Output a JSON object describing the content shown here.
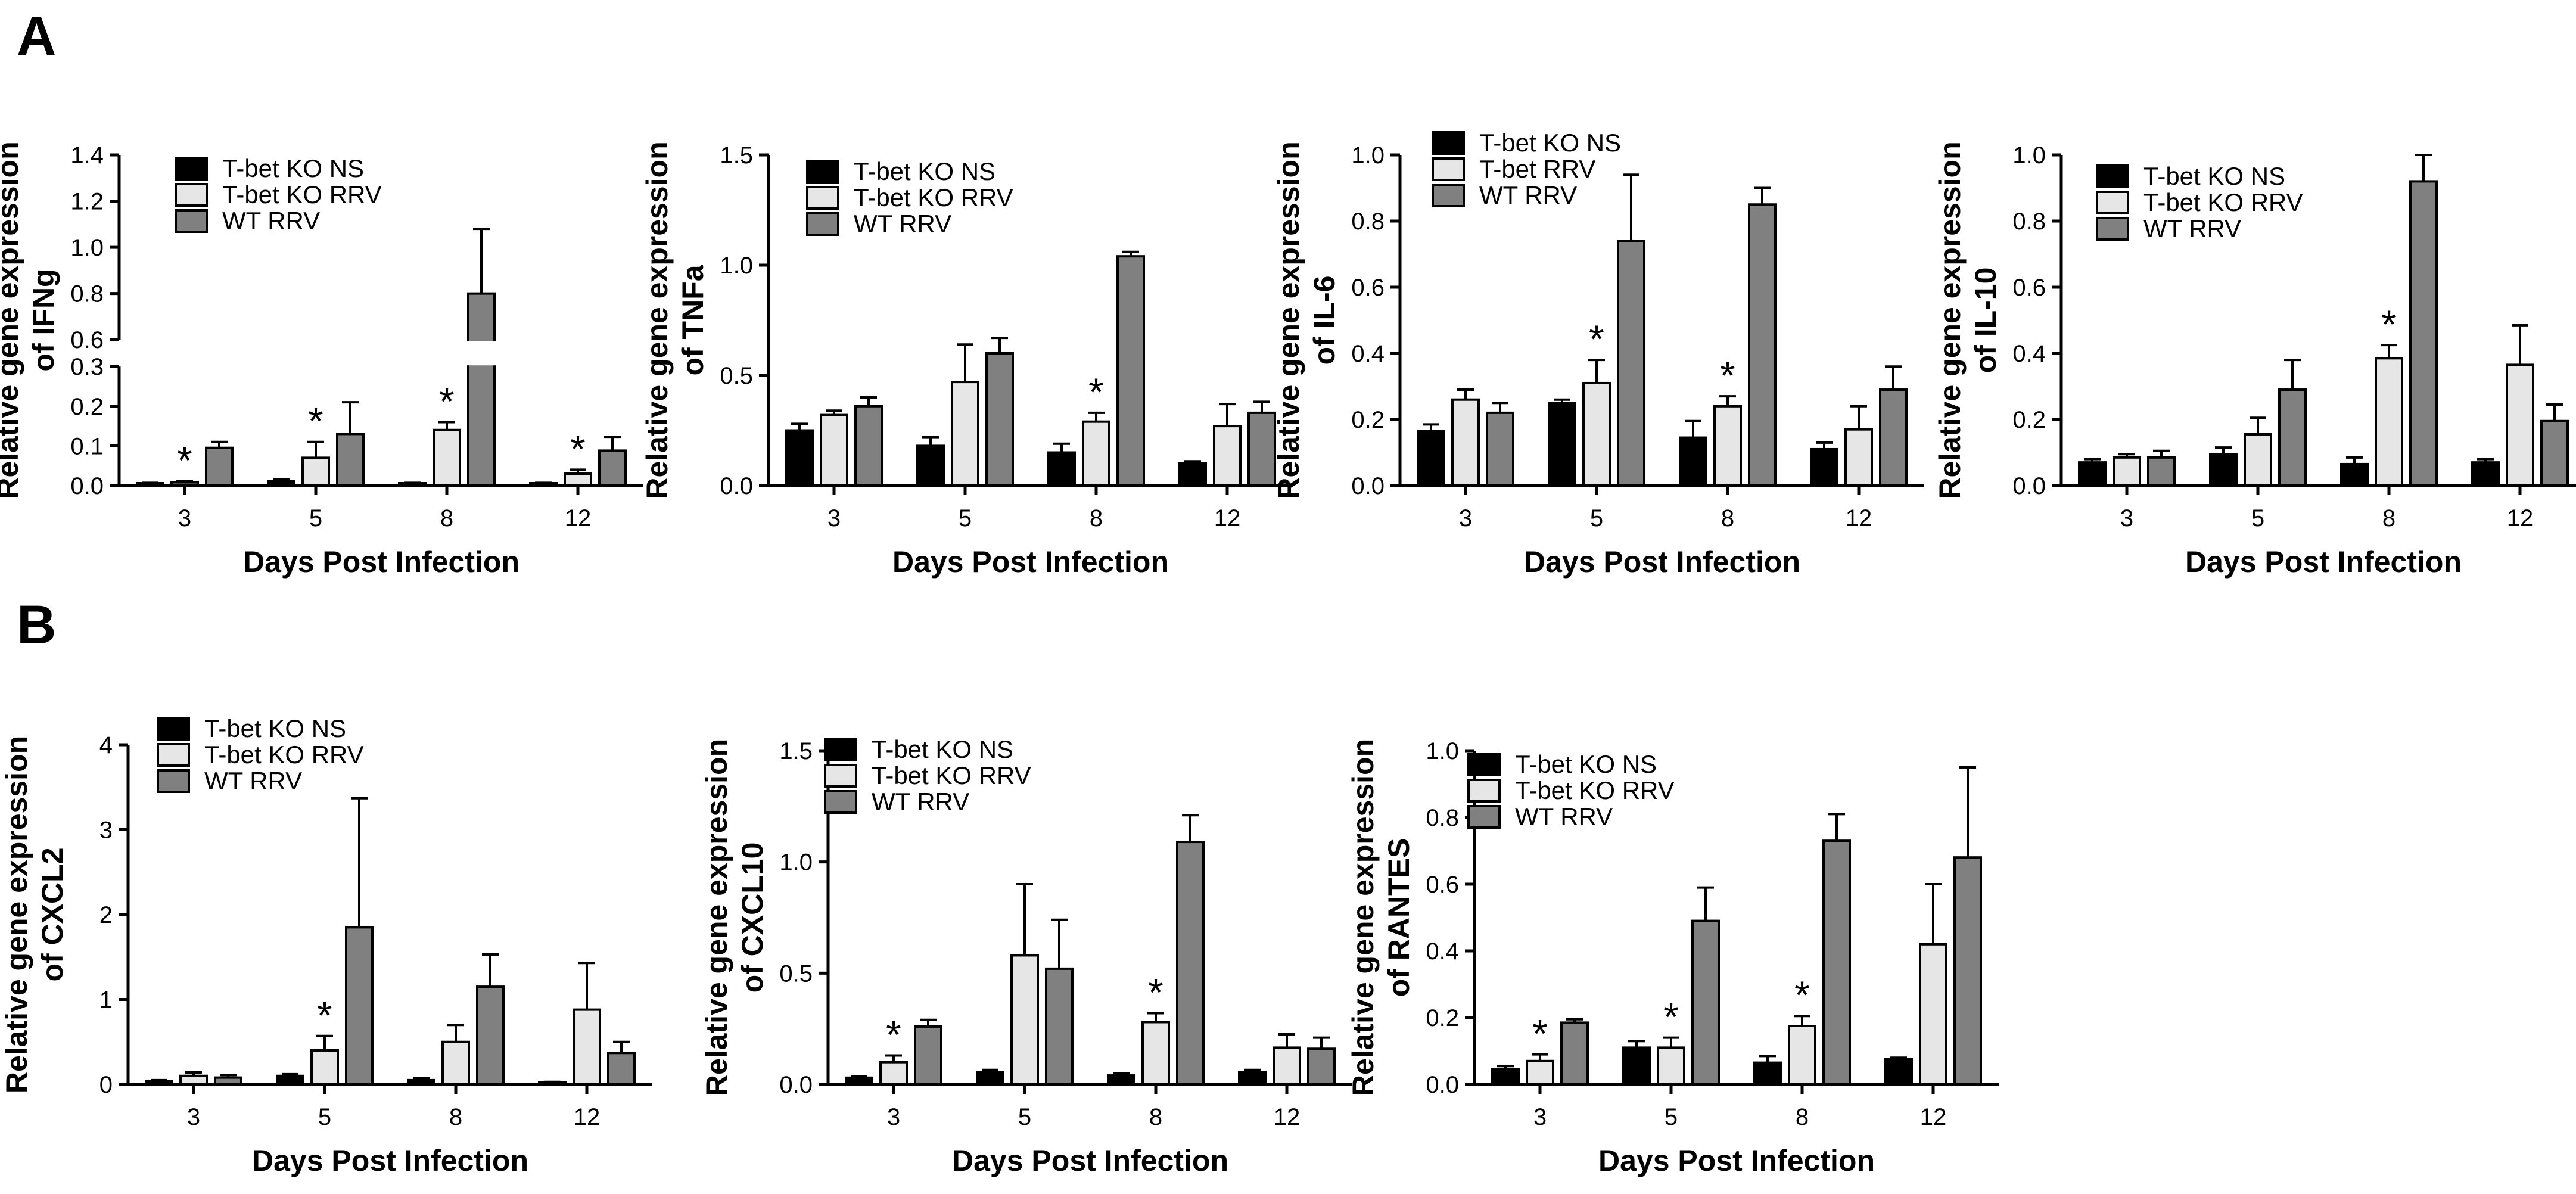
{
  "figure": {
    "panel_a_label": "A",
    "panel_b_label": "B",
    "colors": {
      "ns": "#000000",
      "ko_rrv": "#e6e6e6",
      "wt_rrv": "#808080",
      "axis": "#000000"
    }
  },
  "chart_data": [
    {
      "id": "ifng",
      "type": "bar",
      "panel": "A",
      "ylabel_lines": [
        "Relative gene expression",
        "of IFNg"
      ],
      "xlabel": "Days Post Infection",
      "categories": [
        "3",
        "5",
        "8",
        "12"
      ],
      "legend": [
        "T-bet KO NS",
        "T-bet KO RRV",
        "WT RRV"
      ],
      "broken_axis": {
        "lower": [
          0,
          0.3
        ],
        "upper": [
          0.6,
          1.4
        ]
      },
      "yticks_lower": [
        "0.0",
        "0.1",
        "0.2",
        "0.3"
      ],
      "yticks_upper": [
        "0.6",
        "0.8",
        "1.0",
        "1.2",
        "1.4"
      ],
      "series": [
        {
          "name": "T-bet KO NS",
          "values": [
            0.005,
            0.012,
            0.005,
            0.005
          ],
          "errors": [
            0.002,
            0.004,
            0.002,
            0.002
          ]
        },
        {
          "name": "T-bet KO RRV",
          "values": [
            0.008,
            0.07,
            0.14,
            0.03
          ],
          "errors": [
            0.003,
            0.04,
            0.02,
            0.01
          ]
        },
        {
          "name": "WT RRV",
          "values": [
            0.095,
            0.13,
            0.8,
            0.088
          ],
          "errors": [
            0.015,
            0.08,
            0.28,
            0.035
          ]
        }
      ],
      "significance": [
        {
          "category": "3",
          "series": "T-bet KO RRV",
          "label": "*"
        },
        {
          "category": "5",
          "series": "T-bet KO RRV",
          "label": "*"
        },
        {
          "category": "8",
          "series": "T-bet KO RRV",
          "label": "*"
        },
        {
          "category": "12",
          "series": "T-bet KO RRV",
          "label": "*"
        }
      ]
    },
    {
      "id": "tnfa",
      "type": "bar",
      "panel": "A",
      "ylabel_lines": [
        "Relative gene expression",
        "of TNFa"
      ],
      "xlabel": "Days Post Infection",
      "categories": [
        "3",
        "5",
        "8",
        "12"
      ],
      "legend": [
        "T-bet KO NS",
        "T-bet KO RRV",
        "WT RRV"
      ],
      "ylim": [
        0,
        1.5
      ],
      "yticks": [
        "0.0",
        "0.5",
        "1.0",
        "1.5"
      ],
      "series": [
        {
          "name": "T-bet KO NS",
          "values": [
            0.25,
            0.18,
            0.15,
            0.1
          ],
          "errors": [
            0.03,
            0.04,
            0.04,
            0.01
          ]
        },
        {
          "name": "T-bet KO RRV",
          "values": [
            0.32,
            0.47,
            0.29,
            0.27
          ],
          "errors": [
            0.02,
            0.17,
            0.04,
            0.1
          ]
        },
        {
          "name": "WT RRV",
          "values": [
            0.36,
            0.6,
            1.04,
            0.33
          ],
          "errors": [
            0.04,
            0.07,
            0.02,
            0.05
          ]
        }
      ],
      "significance": [
        {
          "category": "8",
          "series": "T-bet KO RRV",
          "label": "*"
        }
      ]
    },
    {
      "id": "il6",
      "type": "bar",
      "panel": "A",
      "ylabel_lines": [
        "Relative gene expression",
        "of IL-6"
      ],
      "xlabel": "Days Post Infection",
      "categories": [
        "3",
        "5",
        "8",
        "12"
      ],
      "legend": [
        "T-bet KO NS",
        "T-bet RRV",
        "WT RRV"
      ],
      "ylim": [
        0,
        1.0
      ],
      "yticks": [
        "0.0",
        "0.2",
        "0.4",
        "0.6",
        "0.8",
        "1.0"
      ],
      "series": [
        {
          "name": "T-bet KO NS",
          "values": [
            0.165,
            0.25,
            0.145,
            0.11
          ],
          "errors": [
            0.02,
            0.01,
            0.05,
            0.02
          ]
        },
        {
          "name": "T-bet RRV",
          "values": [
            0.26,
            0.31,
            0.24,
            0.17
          ],
          "errors": [
            0.03,
            0.07,
            0.03,
            0.07
          ]
        },
        {
          "name": "WT RRV",
          "values": [
            0.22,
            0.74,
            0.85,
            0.29
          ],
          "errors": [
            0.03,
            0.2,
            0.05,
            0.07
          ]
        }
      ],
      "significance": [
        {
          "category": "5",
          "series": "T-bet RRV",
          "label": "*"
        },
        {
          "category": "8",
          "series": "T-bet RRV",
          "label": "*"
        }
      ]
    },
    {
      "id": "il10",
      "type": "bar",
      "panel": "A",
      "ylabel_lines": [
        "Relative gene expression",
        "of IL-10"
      ],
      "xlabel": "Days Post Infection",
      "categories": [
        "3",
        "5",
        "8",
        "12"
      ],
      "legend": [
        "T-bet KO NS",
        "T-bet KO RRV",
        "WT RRV"
      ],
      "ylim": [
        0,
        1.0
      ],
      "yticks": [
        "0.0",
        "0.2",
        "0.4",
        "0.6",
        "0.8",
        "1.0"
      ],
      "series": [
        {
          "name": "T-bet KO NS",
          "values": [
            0.07,
            0.095,
            0.065,
            0.07
          ],
          "errors": [
            0.01,
            0.02,
            0.02,
            0.01
          ]
        },
        {
          "name": "T-bet KO RRV",
          "values": [
            0.085,
            0.155,
            0.385,
            0.365
          ],
          "errors": [
            0.01,
            0.05,
            0.04,
            0.12
          ]
        },
        {
          "name": "WT RRV",
          "values": [
            0.085,
            0.29,
            0.92,
            0.195
          ],
          "errors": [
            0.02,
            0.09,
            0.08,
            0.05
          ]
        }
      ],
      "significance": [
        {
          "category": "8",
          "series": "T-bet KO RRV",
          "label": "*"
        }
      ]
    },
    {
      "id": "cxcl2",
      "type": "bar",
      "panel": "B",
      "ylabel_lines": [
        "Relative gene expression",
        "of CXCL2"
      ],
      "xlabel": "Days Post Infection",
      "categories": [
        "3",
        "5",
        "8",
        "12"
      ],
      "legend": [
        "T-bet KO NS",
        "T-bet KO RRV",
        "WT RRV"
      ],
      "ylim": [
        0,
        4
      ],
      "yticks": [
        "0",
        "1",
        "2",
        "3",
        "4"
      ],
      "series": [
        {
          "name": "T-bet KO NS",
          "values": [
            0.04,
            0.1,
            0.05,
            0.02
          ],
          "errors": [
            0.01,
            0.02,
            0.02,
            0.01
          ]
        },
        {
          "name": "T-bet KO RRV",
          "values": [
            0.1,
            0.4,
            0.5,
            0.88
          ],
          "errors": [
            0.04,
            0.17,
            0.2,
            0.55
          ]
        },
        {
          "name": "WT RRV",
          "values": [
            0.08,
            1.85,
            1.15,
            0.37
          ],
          "errors": [
            0.03,
            1.52,
            0.38,
            0.13
          ]
        }
      ],
      "significance": [
        {
          "category": "5",
          "series": "T-bet KO RRV",
          "label": "*"
        }
      ]
    },
    {
      "id": "cxcl10",
      "type": "bar",
      "panel": "B",
      "ylabel_lines": [
        "Relative gene expression",
        "of CXCL10"
      ],
      "xlabel": "Days Post Infection",
      "categories": [
        "3",
        "5",
        "8",
        "12"
      ],
      "legend": [
        "T-bet KO NS",
        "T-bet KO RRV",
        "WT RRV"
      ],
      "ylim": [
        0,
        1.5
      ],
      "yticks": [
        "0.0",
        "0.5",
        "1.0",
        "1.5"
      ],
      "series": [
        {
          "name": "T-bet KO NS",
          "values": [
            0.03,
            0.055,
            0.04,
            0.055
          ],
          "errors": [
            0.005,
            0.01,
            0.01,
            0.01
          ]
        },
        {
          "name": "T-bet KO RRV",
          "values": [
            0.1,
            0.58,
            0.28,
            0.165
          ],
          "errors": [
            0.03,
            0.32,
            0.04,
            0.06
          ]
        },
        {
          "name": "WT RRV",
          "values": [
            0.26,
            0.52,
            1.09,
            0.16
          ],
          "errors": [
            0.03,
            0.22,
            0.12,
            0.05
          ]
        }
      ],
      "significance": [
        {
          "category": "3",
          "series": "T-bet KO RRV",
          "label": "*"
        },
        {
          "category": "8",
          "series": "T-bet KO RRV",
          "label": "*"
        }
      ]
    },
    {
      "id": "rantes",
      "type": "bar",
      "panel": "B",
      "ylabel_lines": [
        "Relative gene expression",
        "of RANTES"
      ],
      "xlabel": "Days Post Infection",
      "categories": [
        "3",
        "5",
        "8",
        "12"
      ],
      "legend": [
        "T-bet KO NS",
        "T-bet KO RRV",
        "WT RRV"
      ],
      "ylim": [
        0,
        1.0
      ],
      "yticks": [
        "0.0",
        "0.2",
        "0.4",
        "0.6",
        "0.8",
        "1.0"
      ],
      "series": [
        {
          "name": "T-bet KO NS",
          "values": [
            0.045,
            0.11,
            0.065,
            0.075
          ],
          "errors": [
            0.01,
            0.02,
            0.02,
            0.005
          ]
        },
        {
          "name": "T-bet KO RRV",
          "values": [
            0.07,
            0.11,
            0.175,
            0.42
          ],
          "errors": [
            0.02,
            0.03,
            0.03,
            0.18
          ]
        },
        {
          "name": "WT RRV",
          "values": [
            0.185,
            0.49,
            0.73,
            0.68
          ],
          "errors": [
            0.01,
            0.1,
            0.08,
            0.27
          ]
        }
      ],
      "significance": [
        {
          "category": "3",
          "series": "T-bet KO RRV",
          "label": "*"
        },
        {
          "category": "5",
          "series": "T-bet KO RRV",
          "label": "*"
        },
        {
          "category": "8",
          "series": "T-bet KO RRV",
          "label": "*"
        }
      ]
    }
  ]
}
